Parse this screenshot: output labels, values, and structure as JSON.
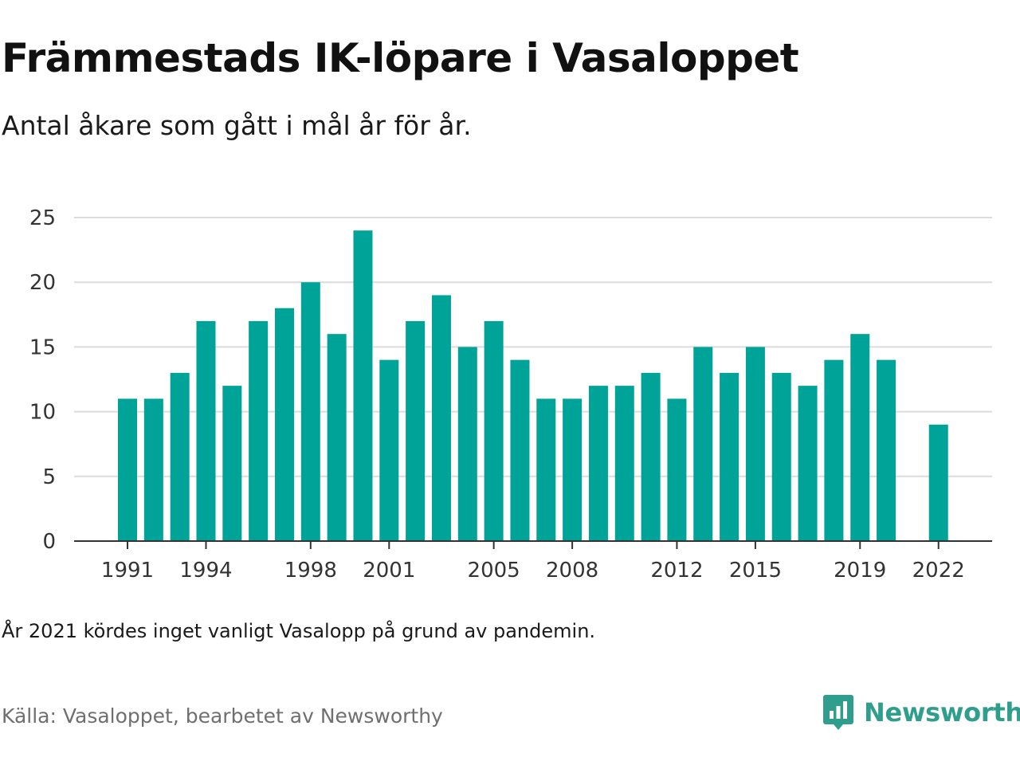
{
  "title": "Främmestads IK-löpare i Vasaloppet",
  "subtitle": "Antal åkare som gått i mål år för år.",
  "note": "År 2021 kördes inget vanligt Vasalopp på grund av pandemin.",
  "source": "Källa: Vasaloppet, bearbetet av Newsworthy",
  "brand": {
    "name": "Newsworthy",
    "icon": "newsworthy-logo-icon",
    "color": "#2f9e8c"
  },
  "chart_data": {
    "type": "bar",
    "title": "",
    "xlabel": "",
    "ylabel": "",
    "bar_color": "#00a398",
    "grid": true,
    "ylim": [
      0,
      25
    ],
    "y_ticks": [
      0,
      5,
      10,
      15,
      20,
      25
    ],
    "x_tick_labels": [
      "1991",
      "1994",
      "1998",
      "2001",
      "2005",
      "2008",
      "2012",
      "2015",
      "2019",
      "2022"
    ],
    "categories": [
      "1991",
      "1992",
      "1993",
      "1994",
      "1995",
      "1996",
      "1997",
      "1998",
      "1999",
      "2000",
      "2001",
      "2002",
      "2003",
      "2004",
      "2005",
      "2006",
      "2007",
      "2008",
      "2009",
      "2010",
      "2011",
      "2012",
      "2013",
      "2014",
      "2015",
      "2016",
      "2017",
      "2018",
      "2019",
      "2020",
      "2021",
      "2022"
    ],
    "values": [
      11,
      11,
      13,
      17,
      12,
      17,
      18,
      20,
      16,
      24,
      14,
      17,
      19,
      15,
      17,
      14,
      11,
      11,
      12,
      12,
      13,
      11,
      15,
      13,
      15,
      13,
      12,
      14,
      16,
      14,
      null,
      9
    ]
  }
}
